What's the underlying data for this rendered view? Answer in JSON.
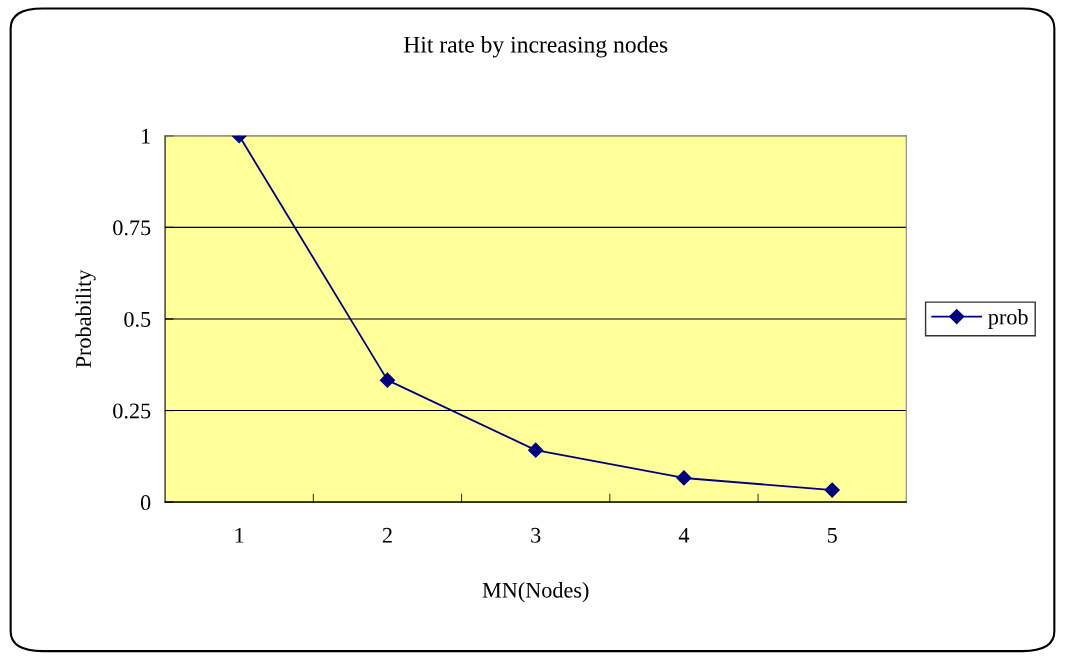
{
  "chart_data": {
    "type": "line",
    "title": "Hit rate by increasing nodes",
    "xlabel": "MN(Nodes)",
    "ylabel": "Probability",
    "categories": [
      "1",
      "2",
      "3",
      "4",
      "5"
    ],
    "series": [
      {
        "name": "prob",
        "color": "#000080",
        "values": [
          1,
          0.333,
          0.142,
          0.066,
          0.033
        ]
      }
    ],
    "ylim": [
      0,
      1
    ],
    "yticks": [
      0,
      0.25,
      0.5,
      0.75,
      1
    ],
    "grid": "y",
    "legend": "right",
    "marker": "diamond",
    "line_style": "solid"
  }
}
